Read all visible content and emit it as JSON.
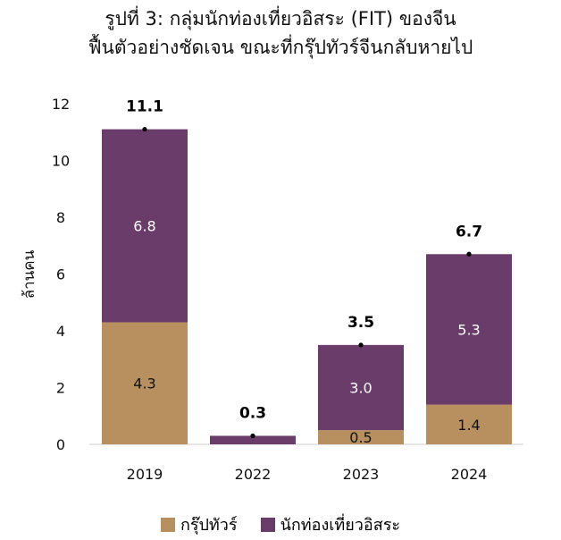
{
  "title_line1": "รูปที่ 3: กลุ่มนักท่องเที่ยวอิสระ (FIT) ของจีน",
  "title_line2": "ฟื้นตัวอย่างชัดเจน ขณะที่กรุ๊ปทัวร์จีนกลับหายไป",
  "colors": {
    "group_tour": "#B89060",
    "fit": "#6A3C6A",
    "axis": "#cccccc"
  },
  "chart_data": {
    "type": "bar",
    "stacked": true,
    "categories": [
      "2019",
      "2022",
      "2023",
      "2024"
    ],
    "series": [
      {
        "name": "กรุ๊ปทัวร์",
        "values": [
          4.3,
          0,
          0.5,
          1.4
        ],
        "labels": [
          "4.3",
          "",
          "0.5",
          "1.4"
        ]
      },
      {
        "name": "นักท่องเที่ยวอิสระ",
        "values": [
          6.8,
          0.3,
          3.0,
          5.3
        ],
        "labels": [
          "6.8",
          "",
          "3.0",
          "5.3"
        ]
      }
    ],
    "totals": [
      11.1,
      0.3,
      3.5,
      6.7
    ],
    "total_labels": [
      "11.1",
      "0.3",
      "3.5",
      "6.7"
    ],
    "ylabel": "ล้านคน",
    "xlabel": "",
    "ylim": [
      0,
      12
    ],
    "yticks": [
      "0",
      "2",
      "4",
      "6",
      "8",
      "10",
      "12"
    ],
    "grid": false,
    "legend_position": "bottom"
  }
}
